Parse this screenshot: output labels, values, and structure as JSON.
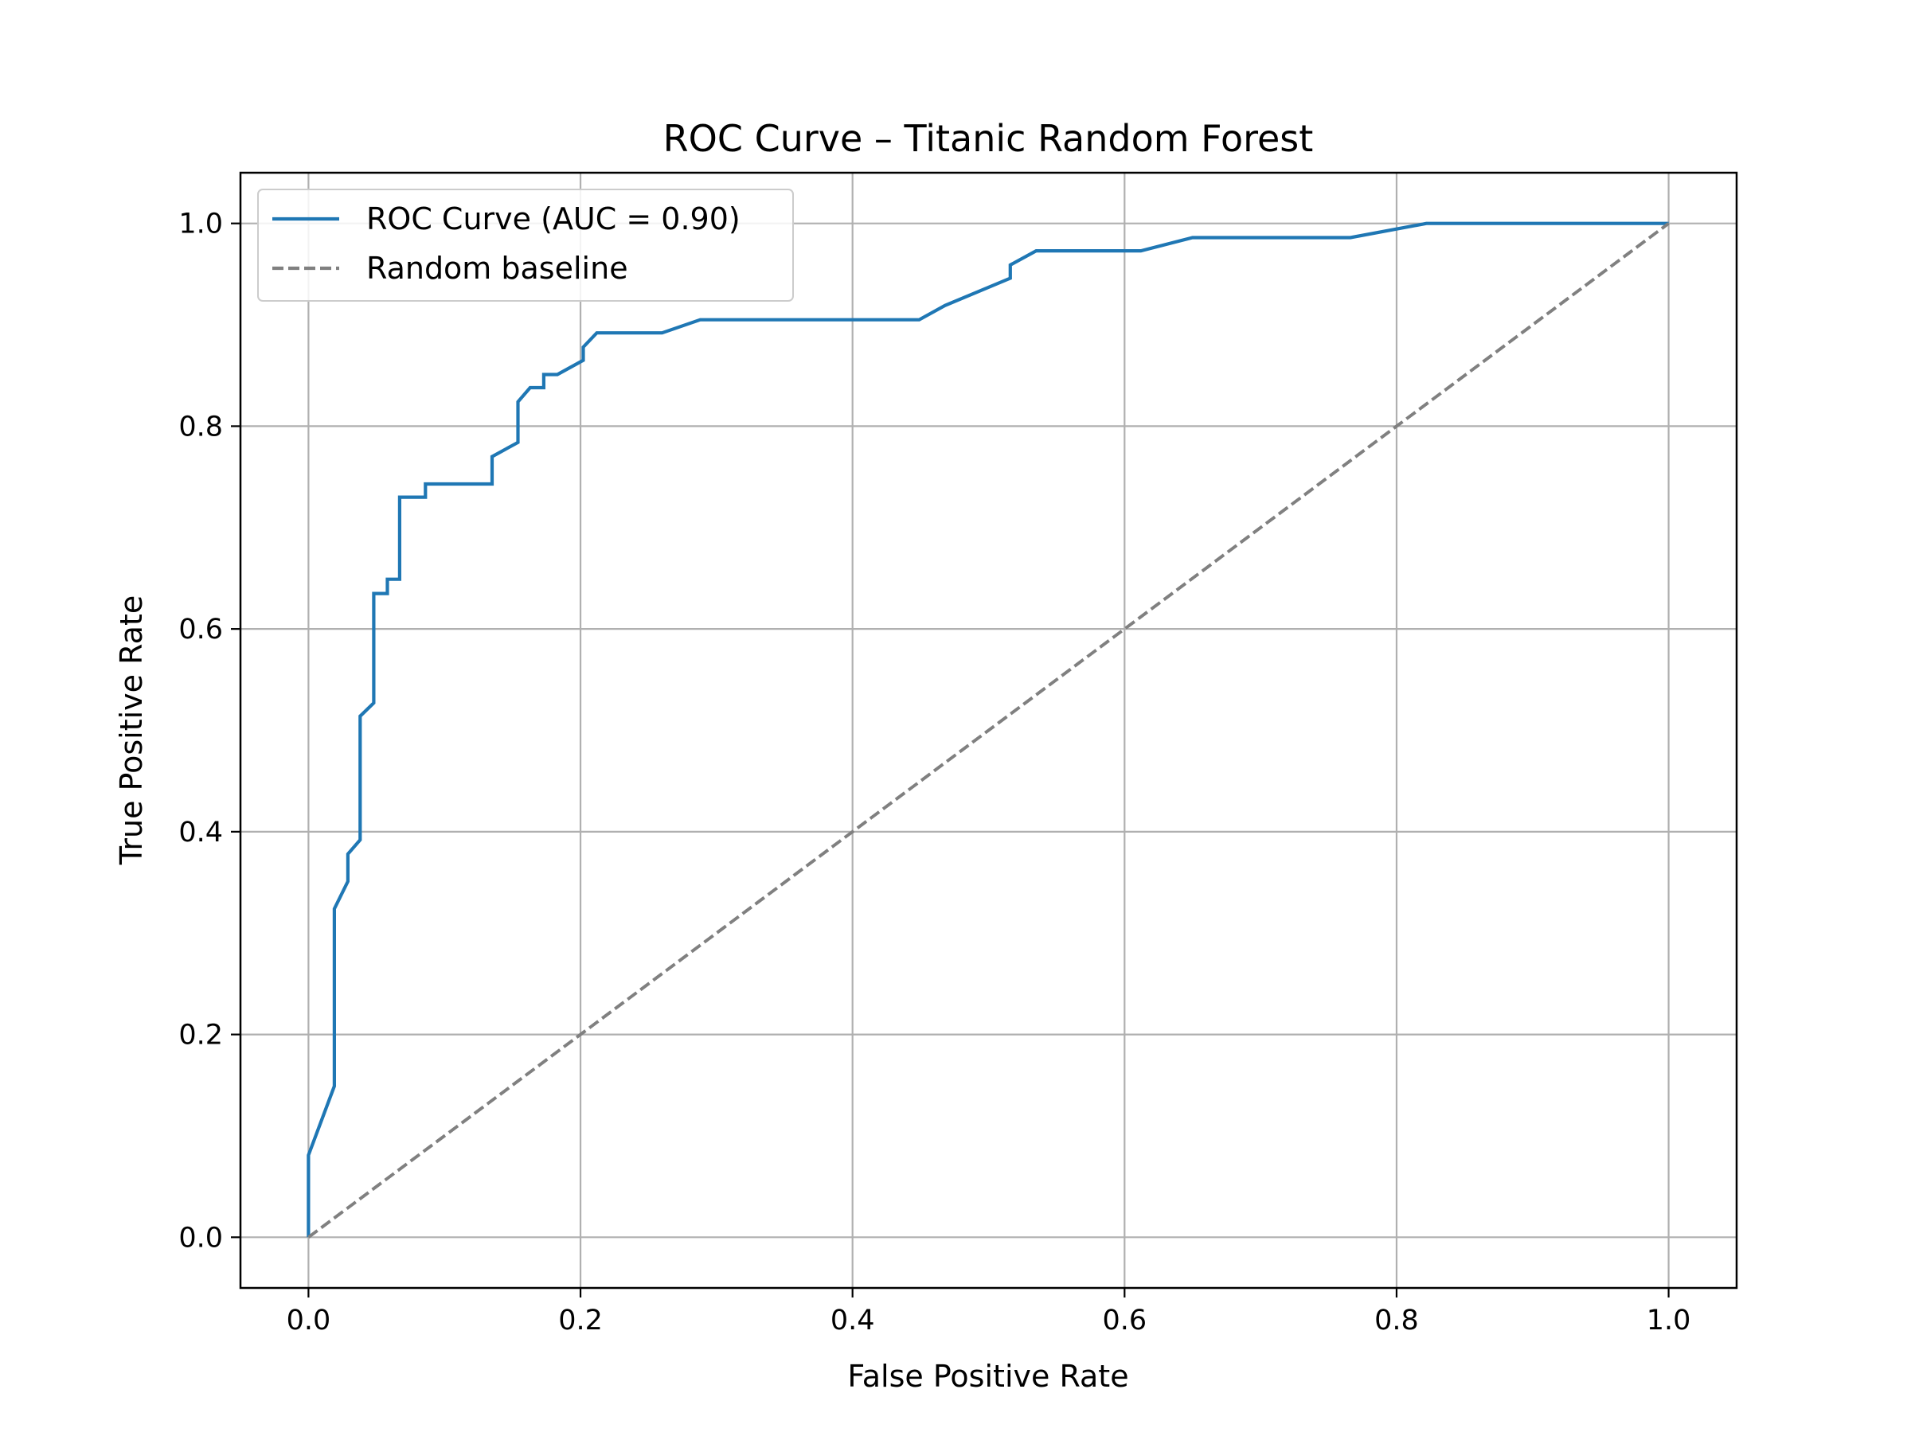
{
  "chart_data": {
    "type": "line",
    "title": "ROC Curve – Titanic Random Forest",
    "xlabel": "False Positive Rate",
    "ylabel": "True Positive Rate",
    "xlim": [
      -0.05,
      1.05
    ],
    "ylim": [
      -0.05,
      1.05
    ],
    "xticks": [
      "0.0",
      "0.2",
      "0.4",
      "0.6",
      "0.8",
      "1.0"
    ],
    "yticks": [
      "0.0",
      "0.2",
      "0.4",
      "0.6",
      "0.8",
      "1.0"
    ],
    "grid": true,
    "legend_position": "top-left",
    "series": [
      {
        "name": "ROC Curve (AUC = 0.90)",
        "color": "#1f77b4",
        "style": "solid",
        "x": [
          0.0,
          0.0,
          0.019,
          0.019,
          0.029,
          0.029,
          0.038,
          0.038,
          0.048,
          0.048,
          0.058,
          0.058,
          0.067,
          0.067,
          0.086,
          0.086,
          0.135,
          0.135,
          0.154,
          0.154,
          0.163,
          0.173,
          0.173,
          0.183,
          0.202,
          0.202,
          0.212,
          0.26,
          0.288,
          0.449,
          0.468,
          0.516,
          0.516,
          0.535,
          0.612,
          0.65,
          0.766,
          0.822,
          1.0
        ],
        "y": [
          0.0,
          0.081,
          0.149,
          0.324,
          0.351,
          0.378,
          0.392,
          0.514,
          0.527,
          0.635,
          0.635,
          0.649,
          0.649,
          0.73,
          0.73,
          0.743,
          0.743,
          0.77,
          0.784,
          0.824,
          0.838,
          0.838,
          0.851,
          0.851,
          0.865,
          0.878,
          0.892,
          0.892,
          0.905,
          0.905,
          0.919,
          0.946,
          0.959,
          0.973,
          0.973,
          0.986,
          0.986,
          1.0,
          1.0
        ]
      },
      {
        "name": "Random baseline",
        "color": "#808080",
        "style": "dashed",
        "x": [
          0.0,
          1.0
        ],
        "y": [
          0.0,
          1.0
        ]
      }
    ]
  }
}
